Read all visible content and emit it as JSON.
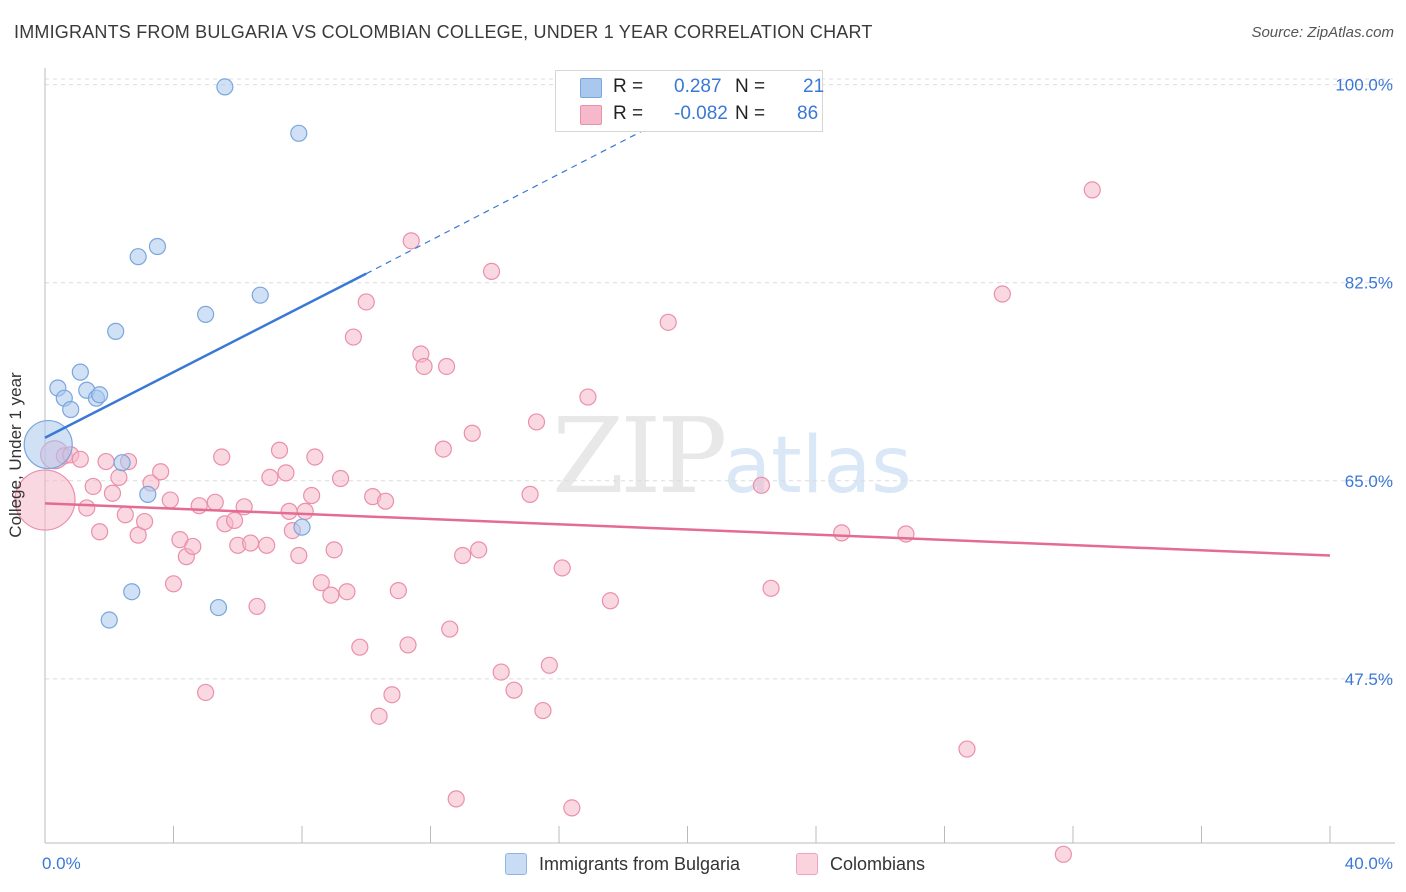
{
  "header": {
    "title": "IMMIGRANTS FROM BULGARIA VS COLOMBIAN COLLEGE, UNDER 1 YEAR CORRELATION CHART",
    "source": "Source: ZipAtlas.com"
  },
  "watermark": {
    "zip": "ZIP",
    "atlas": "atlas"
  },
  "stats": {
    "rows": [
      {
        "r_label": "R =",
        "r_value": "0.287",
        "n_label": "N =",
        "n_value": "21",
        "color": "#aac8ee"
      },
      {
        "r_label": "R =",
        "r_value": "-0.082",
        "n_label": "N =",
        "n_value": "86",
        "color": "#f6b8cb"
      }
    ]
  },
  "legend": {
    "items": [
      {
        "label": "Immigrants from Bulgaria",
        "color": "#aac8ee"
      },
      {
        "label": "Colombians",
        "color": "#f6b8cb"
      }
    ]
  },
  "chart_data": {
    "type": "scatter",
    "title": "IMMIGRANTS FROM BULGARIA VS COLOMBIAN COLLEGE, UNDER 1 YEAR CORRELATION CHART",
    "xlabel": "",
    "ylabel": "College, Under 1 year",
    "xlim": [
      0,
      40
    ],
    "ylim": [
      33,
      102
    ],
    "x_tick_labels": [
      "0.0%",
      "40.0%"
    ],
    "y_ticks": [
      47.5,
      65.0,
      82.5,
      100.0
    ],
    "y_tick_labels": [
      "47.5%",
      "65.0%",
      "82.5%",
      "100.0%"
    ],
    "grid": true,
    "accent_colors": {
      "bulgaria": "#3a78d6",
      "colombians": "#e46b93",
      "tick_label": "#3a78d6"
    },
    "series": [
      {
        "name": "Immigrants from Bulgaria",
        "fill": "#aac8ee",
        "stroke": "#7aa6dc",
        "trend": {
          "x0": 0.0,
          "y0": 68.8,
          "x1": 10.0,
          "y1": 83.3,
          "dash_to_x": 19.0,
          "dash_to_y": 96.5,
          "color": "#3a78d6"
        },
        "points": [
          [
            0.1,
            68.2,
            24
          ],
          [
            0.4,
            73.2,
            8
          ],
          [
            0.6,
            72.3,
            8
          ],
          [
            0.8,
            71.3,
            8
          ],
          [
            1.1,
            74.6,
            8
          ],
          [
            1.3,
            73.0,
            8
          ],
          [
            1.6,
            72.3,
            8
          ],
          [
            1.7,
            72.6,
            8
          ],
          [
            2.2,
            78.2,
            8
          ],
          [
            2.4,
            66.6,
            8
          ],
          [
            2.9,
            84.8,
            8
          ],
          [
            3.2,
            63.8,
            8
          ],
          [
            3.5,
            85.7,
            8
          ],
          [
            5.0,
            79.7,
            8
          ],
          [
            5.4,
            53.8,
            8
          ],
          [
            6.7,
            81.4,
            8
          ],
          [
            7.9,
            95.7,
            8
          ],
          [
            8.0,
            60.9,
            8
          ],
          [
            5.6,
            99.8,
            8
          ],
          [
            2.7,
            55.2,
            8
          ],
          [
            2.0,
            52.7,
            8
          ]
        ]
      },
      {
        "name": "Colombians",
        "fill": "#f6b8cb",
        "stroke": "#eb8fab",
        "trend": {
          "x0": 0.0,
          "y0": 63.0,
          "x1": 40.0,
          "y1": 58.4,
          "color": "#e46b93"
        },
        "points": [
          [
            0.0,
            63.3,
            30
          ],
          [
            0.3,
            67.3,
            14
          ],
          [
            0.6,
            67.2,
            8
          ],
          [
            0.8,
            67.3,
            8
          ],
          [
            1.1,
            66.9,
            8
          ],
          [
            1.3,
            62.6,
            8
          ],
          [
            1.5,
            64.5,
            8
          ],
          [
            1.7,
            60.5,
            8
          ],
          [
            1.9,
            66.7,
            8
          ],
          [
            2.1,
            63.9,
            8
          ],
          [
            2.3,
            65.3,
            8
          ],
          [
            2.5,
            62.0,
            8
          ],
          [
            2.6,
            66.7,
            8
          ],
          [
            2.9,
            60.2,
            8
          ],
          [
            3.1,
            61.4,
            8
          ],
          [
            3.3,
            64.8,
            8
          ],
          [
            3.6,
            65.8,
            8
          ],
          [
            3.9,
            63.3,
            8
          ],
          [
            4.0,
            55.9,
            8
          ],
          [
            4.2,
            59.8,
            8
          ],
          [
            4.4,
            58.3,
            8
          ],
          [
            4.6,
            59.2,
            8
          ],
          [
            4.8,
            62.8,
            8
          ],
          [
            5.0,
            46.3,
            8
          ],
          [
            5.3,
            63.1,
            8
          ],
          [
            5.5,
            67.1,
            8
          ],
          [
            5.6,
            61.2,
            8
          ],
          [
            5.9,
            61.5,
            8
          ],
          [
            6.0,
            59.3,
            8
          ],
          [
            6.2,
            62.7,
            8
          ],
          [
            6.4,
            59.5,
            8
          ],
          [
            6.6,
            53.9,
            8
          ],
          [
            6.9,
            59.3,
            8
          ],
          [
            7.0,
            65.3,
            8
          ],
          [
            7.3,
            67.7,
            8
          ],
          [
            7.5,
            65.7,
            8
          ],
          [
            7.7,
            60.6,
            8
          ],
          [
            7.9,
            58.4,
            8
          ],
          [
            8.1,
            62.3,
            8
          ],
          [
            8.3,
            63.7,
            8
          ],
          [
            8.4,
            67.1,
            8
          ],
          [
            8.6,
            56.0,
            8
          ],
          [
            9.0,
            58.9,
            8
          ],
          [
            9.2,
            65.2,
            8
          ],
          [
            9.4,
            55.2,
            8
          ],
          [
            9.6,
            77.7,
            8
          ],
          [
            9.8,
            50.3,
            8
          ],
          [
            10.0,
            80.8,
            8
          ],
          [
            10.2,
            63.6,
            8
          ],
          [
            10.4,
            44.2,
            8
          ],
          [
            10.6,
            63.2,
            8
          ],
          [
            10.8,
            46.1,
            8
          ],
          [
            11.0,
            55.3,
            8
          ],
          [
            11.3,
            50.5,
            8
          ],
          [
            11.4,
            86.2,
            8
          ],
          [
            11.7,
            76.2,
            8
          ],
          [
            11.8,
            75.1,
            8
          ],
          [
            12.4,
            67.8,
            8
          ],
          [
            12.6,
            51.9,
            8
          ],
          [
            12.5,
            75.1,
            8
          ],
          [
            12.8,
            36.9,
            8
          ],
          [
            13.0,
            58.4,
            8
          ],
          [
            13.3,
            69.2,
            8
          ],
          [
            13.5,
            58.9,
            8
          ],
          [
            13.9,
            83.5,
            8
          ],
          [
            14.2,
            48.1,
            8
          ],
          [
            14.6,
            46.5,
            8
          ],
          [
            15.1,
            63.8,
            8
          ],
          [
            15.3,
            70.2,
            8
          ],
          [
            15.5,
            44.7,
            8
          ],
          [
            15.7,
            48.7,
            8
          ],
          [
            16.1,
            57.3,
            8
          ],
          [
            16.4,
            36.1,
            8
          ],
          [
            16.9,
            72.4,
            8
          ],
          [
            17.6,
            54.4,
            8
          ],
          [
            19.4,
            79.0,
            8
          ],
          [
            22.3,
            64.6,
            8
          ],
          [
            22.6,
            55.5,
            8
          ],
          [
            24.8,
            60.4,
            8
          ],
          [
            26.8,
            60.3,
            8
          ],
          [
            28.7,
            41.3,
            8
          ],
          [
            29.8,
            81.5,
            8
          ],
          [
            31.7,
            32.0,
            8
          ],
          [
            32.6,
            90.7,
            8
          ],
          [
            8.9,
            54.9,
            8
          ],
          [
            7.6,
            62.3,
            8
          ]
        ]
      }
    ]
  }
}
